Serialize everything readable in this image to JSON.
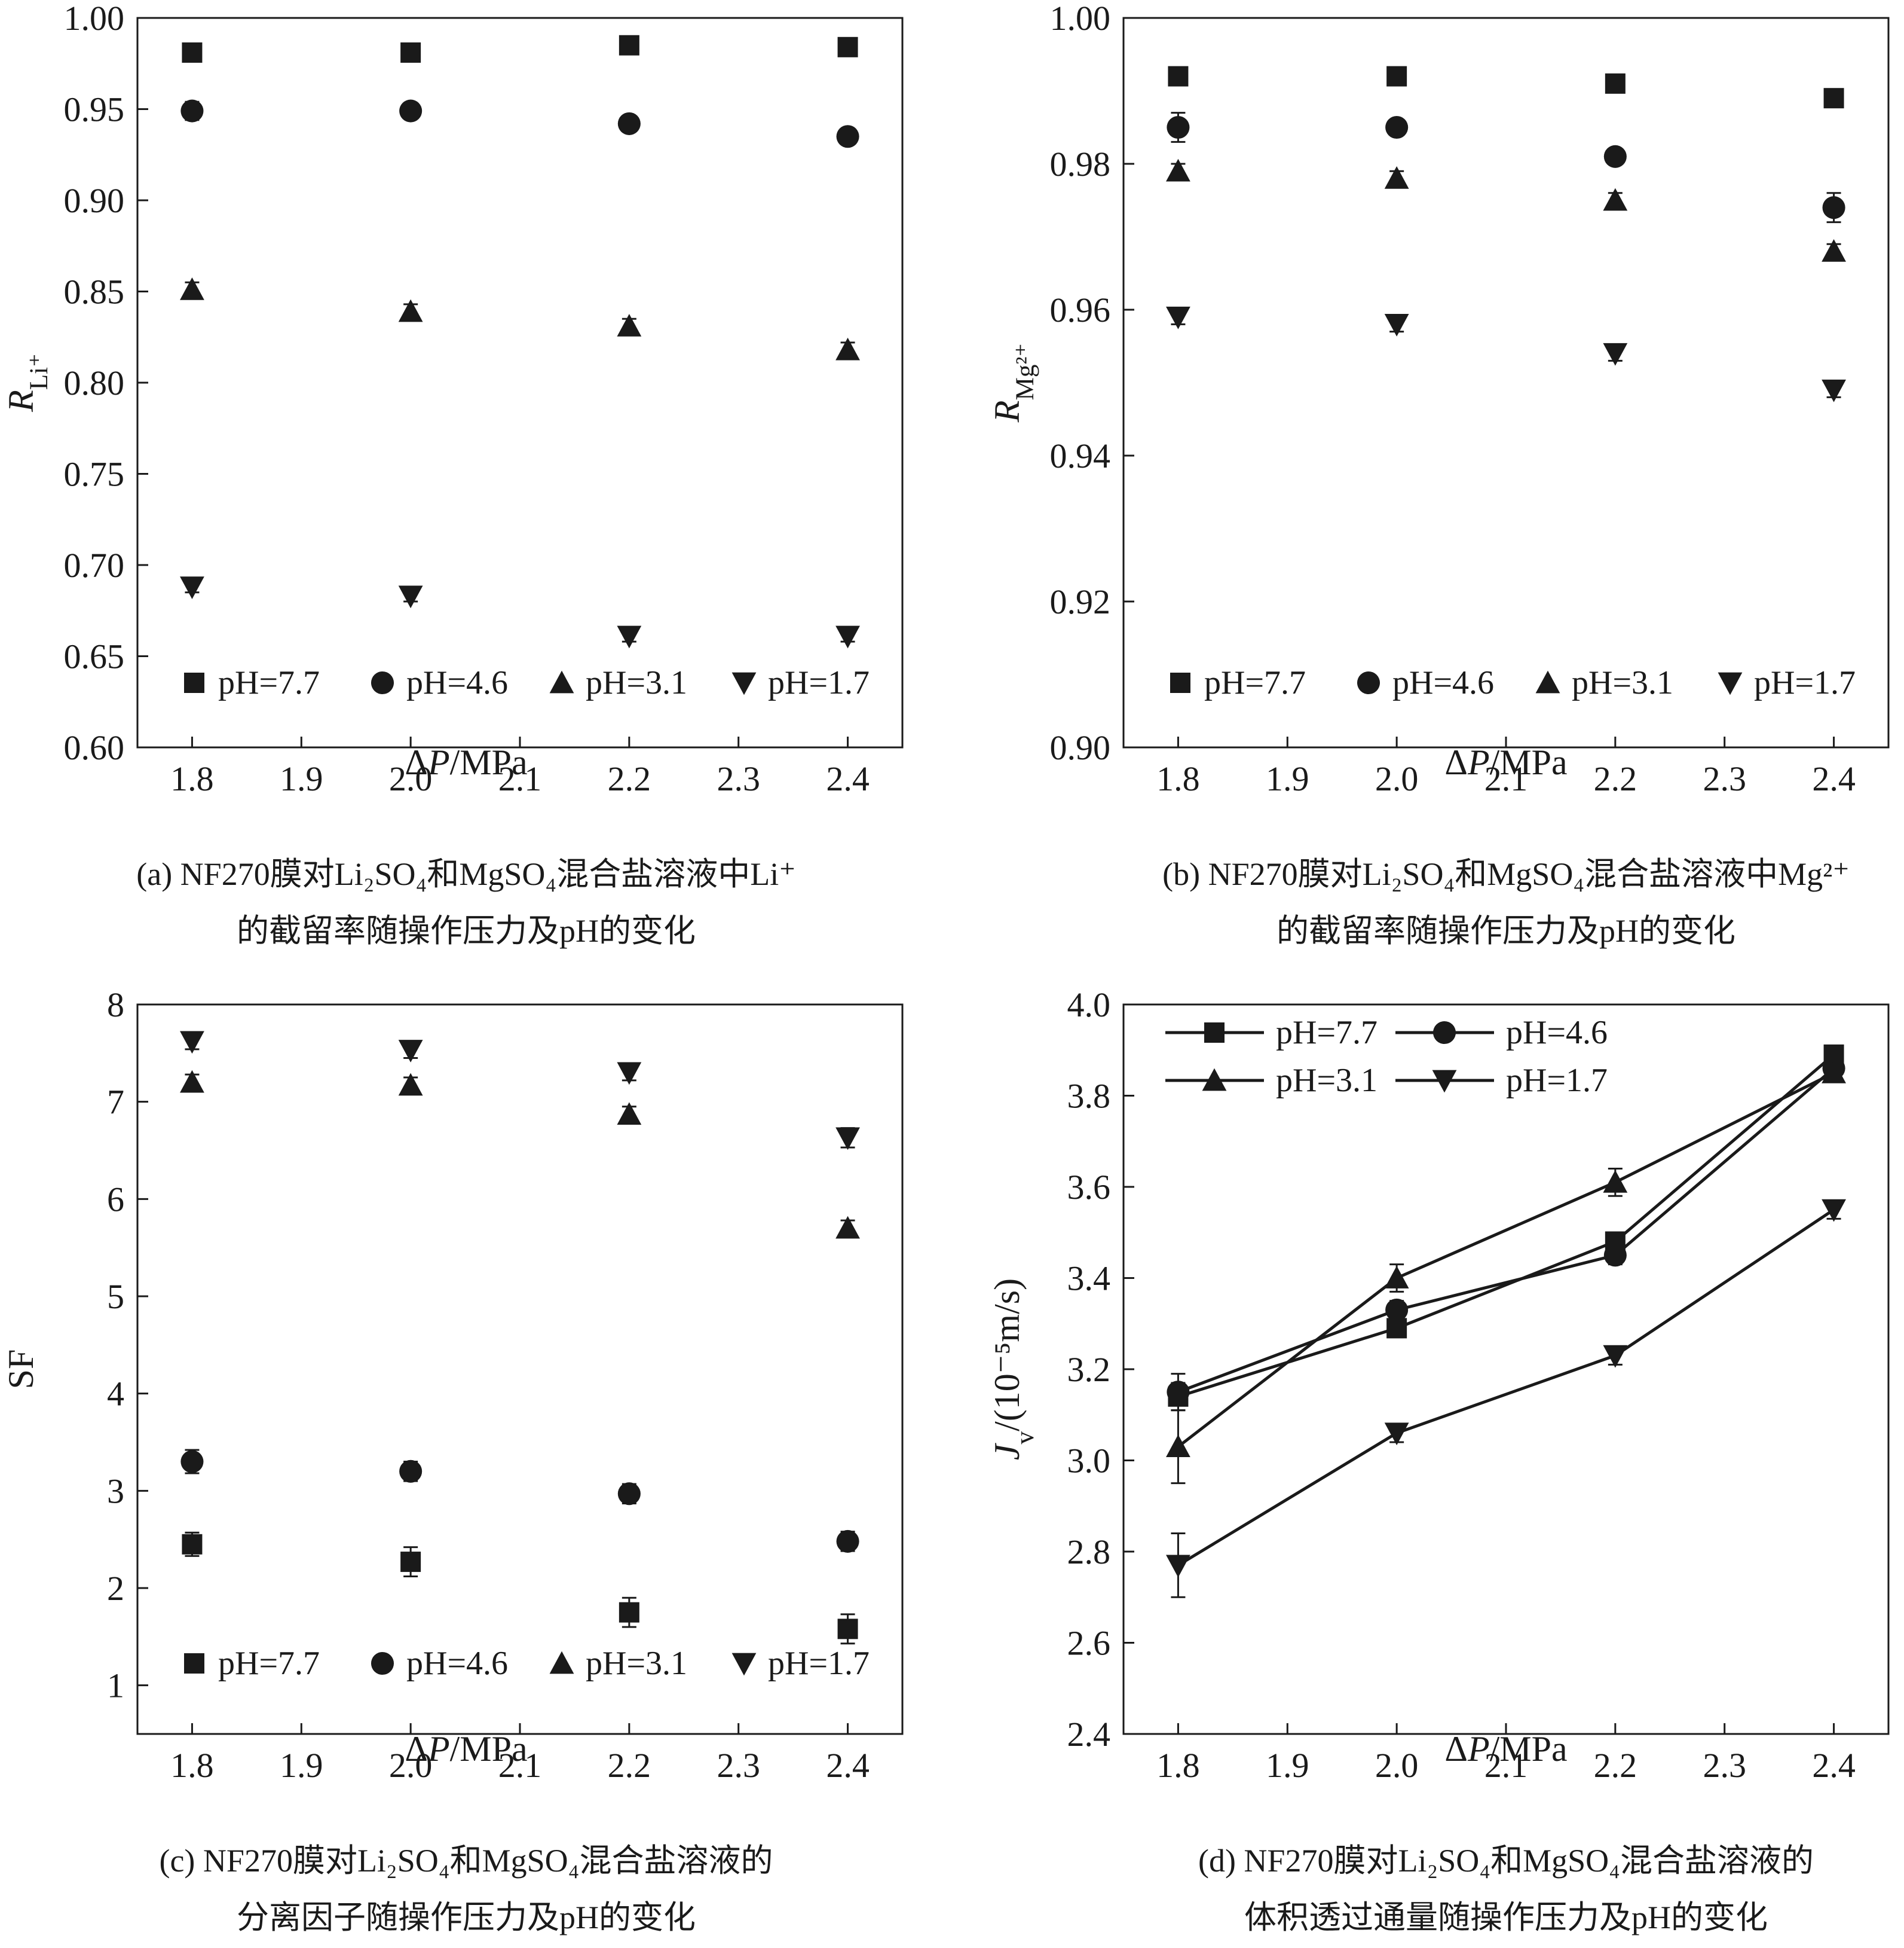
{
  "figure": {
    "chart_data": [
      {
        "id": "a",
        "type": "scatter",
        "x": [
          1.8,
          2.0,
          2.2,
          2.4
        ],
        "xlim": [
          1.75,
          2.45
        ],
        "xticks": [
          "1.8",
          "1.9",
          "2.0",
          "2.1",
          "2.2",
          "2.3",
          "2.4"
        ],
        "ylim": [
          0.6,
          1.0
        ],
        "yticks": [
          "0.60",
          "0.65",
          "0.70",
          "0.75",
          "0.80",
          "0.85",
          "0.90",
          "0.95",
          "1.00"
        ],
        "xlabel": "ΔP/MPa",
        "ylabel": "R_Li⁺",
        "legend_position": "bottom",
        "series": [
          {
            "name": "pH=7.7",
            "marker": "square",
            "values": [
              0.981,
              0.981,
              0.985,
              0.984
            ],
            "errors": [
              0.004,
              0.004,
              0.004,
              0.004
            ]
          },
          {
            "name": "pH=4.6",
            "marker": "circle",
            "values": [
              0.949,
              0.949,
              0.942,
              0.935
            ],
            "errors": [
              0.005,
              0.003,
              0.004,
              0.004
            ]
          },
          {
            "name": "pH=3.1",
            "marker": "triangle-up",
            "values": [
              0.851,
              0.839,
              0.831,
              0.818
            ],
            "errors": [
              0.004,
              0.004,
              0.004,
              0.004
            ]
          },
          {
            "name": "pH=1.7",
            "marker": "triangle-down",
            "values": [
              0.688,
              0.683,
              0.661,
              0.661
            ],
            "errors": [
              0.003,
              0.003,
              0.003,
              0.003
            ]
          }
        ],
        "caption_line1": "(a) NF270膜对Li₂SO₄和MgSO₄混合盐溶液中Li⁺",
        "caption_line2": "的截留率随操作压力及pH的变化"
      },
      {
        "id": "b",
        "type": "scatter",
        "x": [
          1.8,
          2.0,
          2.2,
          2.4
        ],
        "xlim": [
          1.75,
          2.45
        ],
        "xticks": [
          "1.8",
          "1.9",
          "2.0",
          "2.1",
          "2.2",
          "2.3",
          "2.4"
        ],
        "ylim": [
          0.9,
          1.0
        ],
        "yticks": [
          "0.90",
          "0.92",
          "0.94",
          "0.96",
          "0.98",
          "1.00"
        ],
        "xlabel": "ΔP/MPa",
        "ylabel": "R_Mg²⁺",
        "legend_position": "bottom",
        "series": [
          {
            "name": "pH=7.7",
            "marker": "square",
            "values": [
              0.992,
              0.992,
              0.991,
              0.989
            ],
            "errors": [
              0.001,
              0.001,
              0.001,
              0.001
            ]
          },
          {
            "name": "pH=4.6",
            "marker": "circle",
            "values": [
              0.985,
              0.985,
              0.981,
              0.974
            ],
            "errors": [
              0.002,
              0.001,
              0.001,
              0.002
            ]
          },
          {
            "name": "pH=3.1",
            "marker": "triangle-up",
            "values": [
              0.979,
              0.978,
              0.975,
              0.968
            ],
            "errors": [
              0.001,
              0.001,
              0.001,
              0.001
            ]
          },
          {
            "name": "pH=1.7",
            "marker": "triangle-down",
            "values": [
              0.959,
              0.958,
              0.954,
              0.949
            ],
            "errors": [
              0.001,
              0.001,
              0.001,
              0.001
            ]
          }
        ],
        "caption_line1": "(b) NF270膜对Li₂SO₄和MgSO₄混合盐溶液中Mg²⁺",
        "caption_line2": "的截留率随操作压力及pH的变化"
      },
      {
        "id": "c",
        "type": "scatter",
        "x": [
          1.8,
          2.0,
          2.2,
          2.4
        ],
        "xlim": [
          1.75,
          2.45
        ],
        "xticks": [
          "1.8",
          "1.9",
          "2.0",
          "2.1",
          "2.2",
          "2.3",
          "2.4"
        ],
        "ylim": [
          0.5,
          8
        ],
        "yticks": [
          "1",
          "2",
          "3",
          "4",
          "5",
          "6",
          "7",
          "8"
        ],
        "xlabel": "ΔP/MPa",
        "ylabel": "SF",
        "legend_position": "bottom",
        "series": [
          {
            "name": "pH=7.7",
            "marker": "square",
            "values": [
              2.45,
              2.27,
              1.75,
              1.58
            ],
            "errors": [
              0.12,
              0.15,
              0.15,
              0.15
            ]
          },
          {
            "name": "pH=4.6",
            "marker": "circle",
            "values": [
              3.3,
              3.2,
              2.97,
              2.48
            ],
            "errors": [
              0.12,
              0.1,
              0.1,
              0.1
            ]
          },
          {
            "name": "pH=3.1",
            "marker": "triangle-up",
            "values": [
              7.2,
              7.17,
              6.87,
              5.7
            ],
            "errors": [
              0.08,
              0.08,
              0.08,
              0.08
            ]
          },
          {
            "name": "pH=1.7",
            "marker": "triangle-down",
            "values": [
              7.62,
              7.53,
              7.3,
              6.63
            ],
            "errors": [
              0.08,
              0.08,
              0.08,
              0.1
            ]
          }
        ],
        "caption_line1": "(c) NF270膜对Li₂SO₄和MgSO₄混合盐溶液的",
        "caption_line2": "分离因子随操作压力及pH的变化"
      },
      {
        "id": "d",
        "type": "line",
        "x": [
          1.8,
          2.0,
          2.2,
          2.4
        ],
        "xlim": [
          1.75,
          2.45
        ],
        "xticks": [
          "1.8",
          "1.9",
          "2.0",
          "2.1",
          "2.2",
          "2.3",
          "2.4"
        ],
        "ylim": [
          2.4,
          4.0
        ],
        "yticks": [
          "2.4",
          "2.6",
          "2.8",
          "3.0",
          "3.2",
          "3.4",
          "3.6",
          "3.8",
          "4.0"
        ],
        "xlabel": "ΔP/MPa",
        "ylabel": "Jv/(10⁻⁵m/s)",
        "legend_position": "top-left",
        "series": [
          {
            "name": "pH=7.7",
            "marker": "square",
            "values": [
              3.14,
              3.29,
              3.48,
              3.89
            ],
            "errors": [
              0.03,
              0.02,
              0.02,
              0.02
            ]
          },
          {
            "name": "pH=4.6",
            "marker": "circle",
            "values": [
              3.15,
              3.33,
              3.45,
              3.86
            ],
            "errors": [
              0.04,
              0.02,
              0.02,
              0.02
            ]
          },
          {
            "name": "pH=3.1",
            "marker": "triangle-up",
            "values": [
              3.03,
              3.4,
              3.61,
              3.85
            ],
            "errors": [
              0.08,
              0.03,
              0.03,
              0.02
            ]
          },
          {
            "name": "pH=1.7",
            "marker": "triangle-down",
            "values": [
              2.77,
              3.06,
              3.23,
              3.55
            ],
            "errors": [
              0.07,
              0.02,
              0.02,
              0.02
            ]
          }
        ],
        "caption_line1": "(d) NF270膜对Li₂SO₄和MgSO₄混合盐溶液的",
        "caption_line2": "体积透过通量随操作压力及pH的变化"
      }
    ]
  }
}
